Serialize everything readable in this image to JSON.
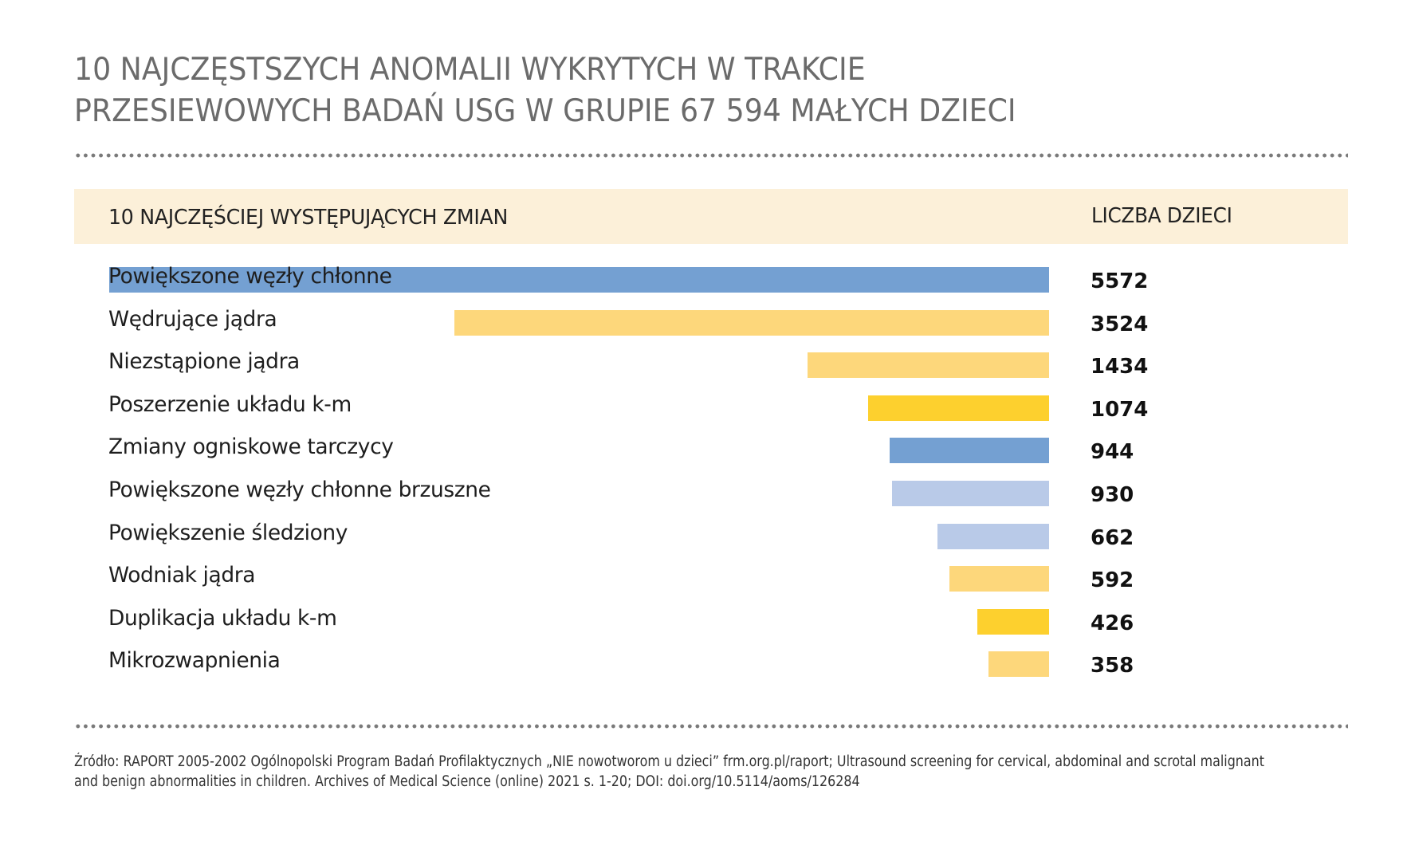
{
  "title": {
    "line1": "10 NAJCZĘSTSZYCH ANOMALII WYKRYTYCH W TRAKCIE",
    "line2": "PRZESIEWOWYCH BADAŃ USG W GRUPIE 67 594 MAŁYCH DZIECI"
  },
  "header_band": {
    "left": "10 NAJCZĘŚCIEJ WYSTĘPUJĄCYCH ZMIAN",
    "right": "LICZBA DZIECI"
  },
  "colors": {
    "blue": "#74a0d2",
    "light_blue": "#b9cae8",
    "light_yellow": "#fdd77b",
    "gold": "#fdd02e",
    "band": "#fcf0d9",
    "title": "#6b6b6b"
  },
  "chart_data": {
    "type": "bar",
    "orientation": "horizontal",
    "title": "10 NAJCZĘSTSZYCH ANOMALII WYKRYTYCH W TRAKCIE PRZESIEWOWYCH BADAŃ USG W GRUPIE 67 594 MAŁYCH DZIECI",
    "xlabel": "LICZBA DZIECI",
    "ylabel": "10 NAJCZĘŚCIEJ WYSTĘPUJĄCYCH ZMIAN",
    "xlim": [
      0,
      5572
    ],
    "grid": false,
    "categories": [
      "Powiększone węzły chłonne",
      "Wędrujące jądra",
      "Niezstąpione jądra",
      "Poszerzenie układu k-m",
      "Zmiany ogniskowe tarczycy",
      "Powiększone węzły chłonne brzuszne",
      "Powiększenie śledziony",
      "Wodniak jądra",
      "Duplikacja układu k-m",
      "Mikrozwapnienia"
    ],
    "values": [
      5572,
      3524,
      1434,
      1074,
      944,
      930,
      662,
      592,
      426,
      358
    ],
    "value_labels": [
      "5572",
      "3524",
      "1434",
      "1074",
      "944",
      "930",
      "662",
      "592",
      "426",
      "358"
    ],
    "bar_colors": [
      "blue",
      "light_yellow",
      "light_yellow",
      "gold",
      "blue",
      "light_blue",
      "light_blue",
      "light_yellow",
      "gold",
      "light_yellow"
    ]
  },
  "footer": {
    "line1": "Źródło: RAPORT 2005-2002 Ogólnopolski Program Badań Profilaktycznych „NIE nowotworom u dzieci” frm.org.pl/raport; Ultrasound screening for cervical, abdominal and scrotal malignant",
    "line2": "and benign  abnormalities in children. Archives of Medical Science (online) 2021 s. 1-20; DOI: doi.org/10.5114/aoms/126284"
  }
}
